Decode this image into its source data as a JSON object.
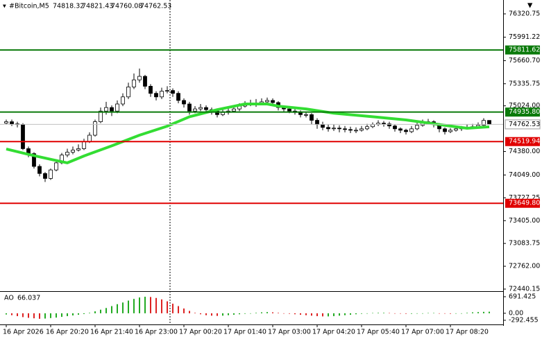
{
  "chart_data": {
    "type": "candlestick",
    "symbol": "#Bitcoin,M5",
    "ylim": [
      72410.75,
      76516.25
    ],
    "yticks": [
      76320.75,
      75991.22,
      {
        "value": 75660.7,
        "label": "75660.70"
      },
      75335.75,
      {
        "value": 75024,
        "label": "75024.00"
      },
      {
        "value": 74380,
        "label": "74380.00"
      },
      {
        "value": 74049,
        "label": "74049.00"
      },
      73727.25,
      {
        "value": 73405,
        "label": "73405.00"
      },
      73083.75,
      {
        "value": 72762,
        "label": "72762.00"
      },
      72440.15
    ],
    "xticks": [
      {
        "value": 0,
        "label": "16 Apr 2026"
      },
      {
        "value": 8,
        "label": "16 Apr 20:20"
      },
      {
        "value": 16,
        "label": "16 Apr 21:40"
      },
      {
        "value": 24,
        "label": "16 Apr 23:00"
      },
      {
        "value": 32,
        "label": "17 Apr 00:20"
      },
      {
        "value": 40,
        "label": "17 Apr 01:40"
      },
      {
        "value": 48,
        "label": "17 Apr 03:00"
      },
      {
        "value": 56,
        "label": "17 Apr 04:20"
      },
      {
        "value": 64,
        "label": "17 Apr 05:40"
      },
      {
        "value": 72,
        "label": "17 Apr 07:00"
      },
      {
        "value": 80,
        "label": "17 Apr 08:20"
      }
    ],
    "open": [
      74780,
      74800,
      74770,
      74760,
      74420,
      74350,
      74170,
      74070,
      74000,
      74120,
      74220,
      74330,
      74370,
      74400,
      74420,
      74520,
      74610,
      74800,
      74950,
      75000,
      74950,
      75050,
      75150,
      75290,
      75390,
      75440,
      75300,
      75200,
      75150,
      75230,
      75240,
      75200,
      75100,
      75050,
      74950,
      74980,
      75000,
      74970,
      74950,
      74900,
      74930,
      74950,
      74980,
      75020,
      75050,
      75060,
      75050,
      75080,
      75100,
      75070,
      75000,
      74980,
      74950,
      74930,
      74900,
      74900,
      74820,
      74760,
      74720,
      74700,
      74710,
      74700,
      74690,
      74680,
      74680,
      74700,
      74730,
      74760,
      74780,
      74770,
      74740,
      74700,
      74680,
      74660,
      74700,
      74750,
      74790,
      74800,
      74760,
      74700,
      74660,
      74680,
      74700,
      74710,
      74720,
      74730,
      74750,
      74818.32
    ],
    "high": [
      74830,
      74830,
      74800,
      74780,
      74450,
      74370,
      74200,
      74090,
      74140,
      74250,
      74360,
      74420,
      74450,
      74480,
      74560,
      74650,
      74830,
      75000,
      75080,
      75030,
      75100,
      75200,
      75350,
      75480,
      75550,
      75460,
      75330,
      75230,
      75280,
      75300,
      75270,
      75230,
      75130,
      75080,
      75020,
      75050,
      75030,
      75000,
      74980,
      74970,
      74990,
      75020,
      75060,
      75090,
      75110,
      75120,
      75130,
      75140,
      75130,
      75090,
      75030,
      75010,
      74980,
      74960,
      74940,
      74920,
      74850,
      74800,
      74760,
      74760,
      74750,
      74740,
      74730,
      74720,
      74740,
      74770,
      74790,
      74820,
      74810,
      74800,
      74760,
      74720,
      74700,
      74740,
      74790,
      74830,
      74840,
      74820,
      74780,
      74720,
      74710,
      74730,
      74740,
      74760,
      74770,
      74790,
      74850,
      74821.43
    ],
    "low": [
      74760,
      74740,
      74720,
      74400,
      74300,
      74140,
      74030,
      73950,
      73980,
      74100,
      74200,
      74300,
      74340,
      74380,
      74400,
      74500,
      74590,
      74780,
      74900,
      74880,
      74920,
      75020,
      75120,
      75260,
      75350,
      75260,
      75150,
      75100,
      75120,
      75200,
      75150,
      75060,
      75000,
      74900,
      74920,
      74950,
      74930,
      74900,
      74860,
      74880,
      74900,
      74930,
      74950,
      75000,
      75020,
      75010,
      75030,
      75050,
      75030,
      74960,
      74940,
      74920,
      74900,
      74860,
      74860,
      74760,
      74700,
      74680,
      74660,
      74670,
      74650,
      74650,
      74640,
      74640,
      74660,
      74680,
      74710,
      74740,
      74730,
      74700,
      74660,
      74640,
      74620,
      74640,
      74680,
      74730,
      74760,
      74720,
      74650,
      74620,
      74640,
      74660,
      74670,
      74690,
      74700,
      74710,
      74730,
      74760.08
    ],
    "close": [
      74800,
      74770,
      74760,
      74420,
      74350,
      74170,
      74070,
      74000,
      74120,
      74220,
      74330,
      74370,
      74400,
      74420,
      74520,
      74610,
      74800,
      74950,
      75000,
      74950,
      75050,
      75150,
      75290,
      75390,
      75440,
      75300,
      75200,
      75150,
      75230,
      75240,
      75200,
      75100,
      75050,
      74950,
      74980,
      75000,
      74970,
      74950,
      74900,
      74930,
      74950,
      74980,
      75020,
      75050,
      75060,
      75050,
      75080,
      75100,
      75070,
      75000,
      74980,
      74950,
      74930,
      74900,
      74900,
      74820,
      74760,
      74720,
      74700,
      74710,
      74700,
      74690,
      74680,
      74680,
      74700,
      74730,
      74760,
      74780,
      74770,
      74740,
      74700,
      74680,
      74660,
      74700,
      74750,
      74790,
      74800,
      74760,
      74700,
      74660,
      74680,
      74700,
      74710,
      74720,
      74730,
      74750,
      74818.32,
      74762.53
    ],
    "ma": {
      "color": "#33dd33",
      "x": [
        0,
        4,
        8,
        11,
        14,
        19,
        24,
        29,
        33,
        38,
        43,
        47,
        49,
        54,
        59,
        66,
        72,
        78,
        83,
        87
      ],
      "values": [
        74415,
        74340,
        74270,
        74220,
        74317,
        74460,
        74610,
        74737,
        74870,
        74970,
        75050,
        75050,
        75020,
        74980,
        74920,
        74870,
        74825,
        74760,
        74708,
        74728
      ]
    },
    "levels": [
      {
        "value": 75811.62,
        "label": "75811.62",
        "color": "#0a7a0a"
      },
      {
        "value": 74935.8,
        "label": "74935.80",
        "color": "#0a7a0a"
      },
      {
        "value": 74519.94,
        "label": "74519.94",
        "color": "#e00000"
      },
      {
        "value": 73649.8,
        "label": "73649.80",
        "color": "#e00000"
      }
    ],
    "ao": {
      "name": "AO",
      "ylim": [
        -292.455,
        691.425
      ],
      "yticks": [
        691.425,
        {
          "value": 0,
          "label": "0.00"
        },
        -292.455
      ],
      "up_color": "#22aa22",
      "down_color": "#dd2222",
      "values": [
        -50,
        -80,
        -120,
        -160,
        -190,
        -210,
        -230,
        -220,
        -200,
        -180,
        -150,
        -120,
        -90,
        -60,
        -30,
        20,
        80,
        150,
        220,
        300,
        380,
        450,
        530,
        600,
        660,
        690,
        680,
        640,
        580,
        500,
        400,
        300,
        200,
        100,
        20,
        -40,
        -80,
        -100,
        -110,
        -100,
        -80,
        -60,
        -40,
        -20,
        0,
        20,
        40,
        50,
        40,
        20,
        0,
        -20,
        -40,
        -60,
        -80,
        -100,
        -120,
        -130,
        -130,
        -120,
        -100,
        -80,
        -60,
        -40,
        -20,
        0,
        10,
        20,
        20,
        10,
        0,
        -10,
        -20,
        -20,
        -10,
        0,
        10,
        10,
        0,
        -10,
        -20,
        -10,
        0,
        20,
        40,
        50,
        60,
        66.037
      ]
    }
  }
}
